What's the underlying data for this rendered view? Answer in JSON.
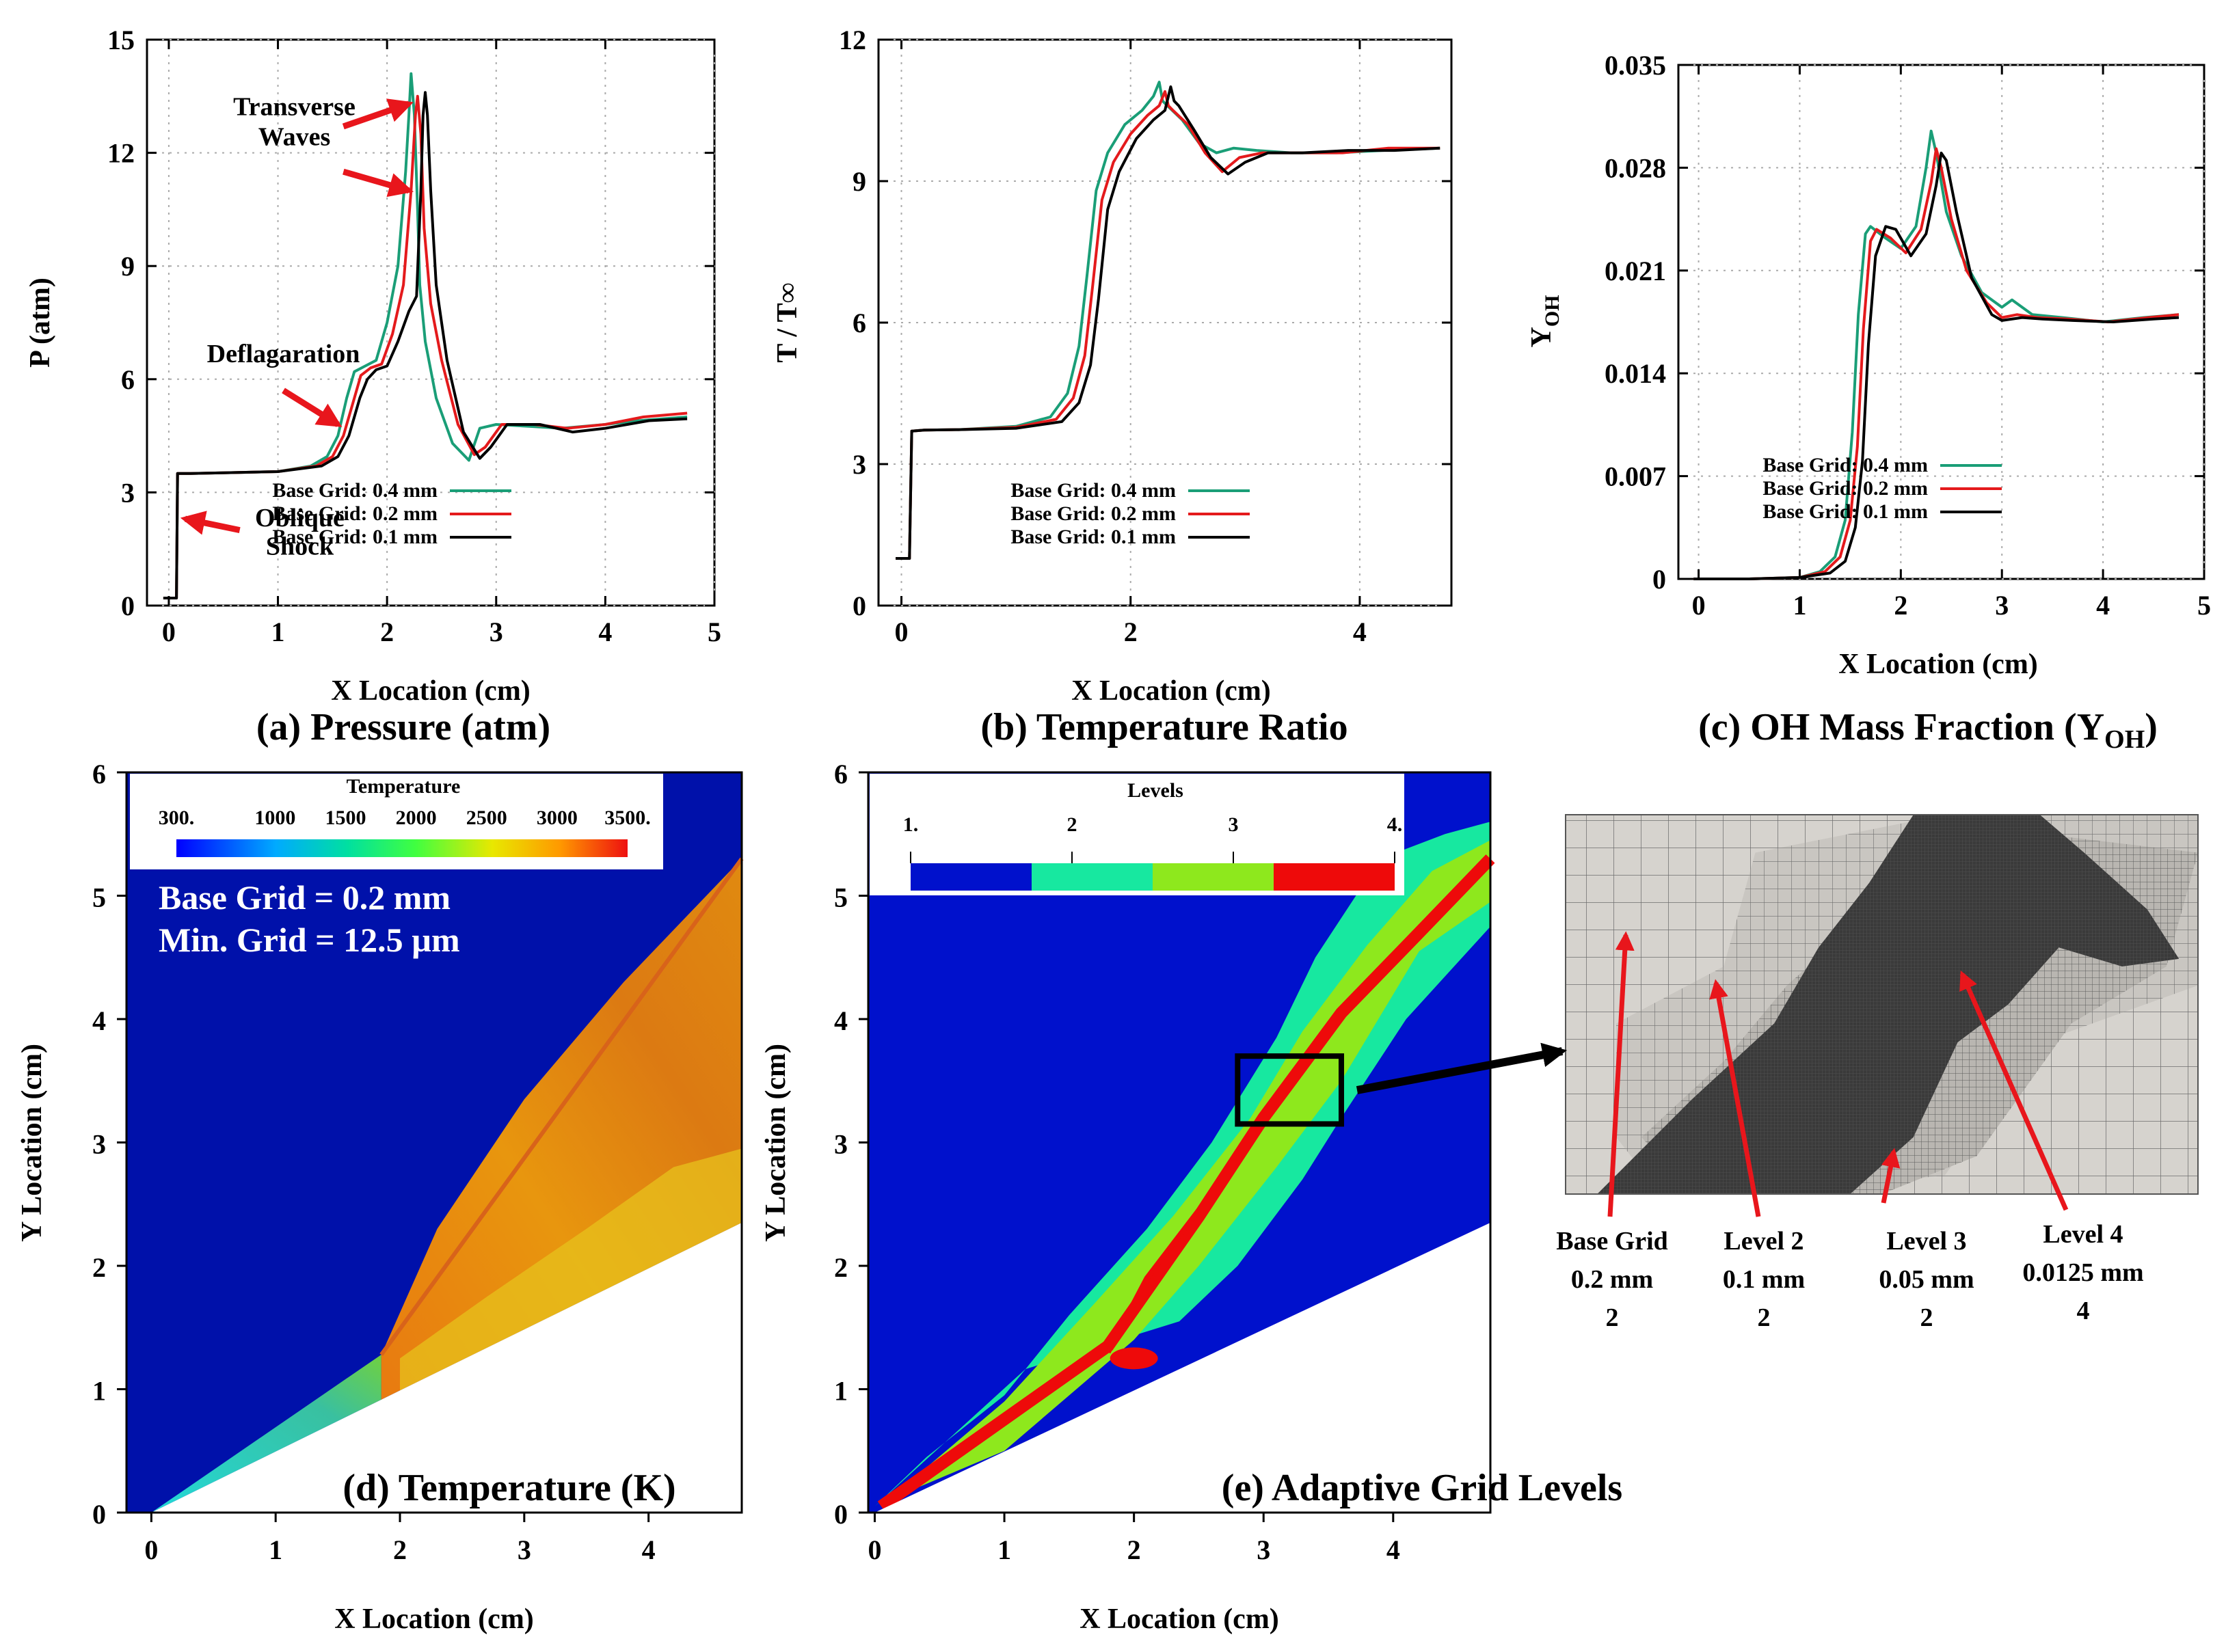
{
  "colors": {
    "series_04": "#1a9e77",
    "series_02": "#e41a1c",
    "series_01": "#000000",
    "arrow": "#e8161c",
    "field_blue": "#0011aa",
    "mesh_light": "#cfcbc5",
    "mesh_dark": "#3b3b3b"
  },
  "chart_data": [
    {
      "id": "a",
      "type": "line",
      "caption": "(a) Pressure (atm)",
      "xlabel": "X Location (cm)",
      "ylabel": "P (atm)",
      "xlim": [
        -0.2,
        5
      ],
      "ylim": [
        0,
        15
      ],
      "xticks": [
        "0",
        "1",
        "2",
        "3",
        "4",
        "5"
      ],
      "yticks": [
        "0",
        "3",
        "6",
        "9",
        "12",
        "15"
      ],
      "grid": true,
      "legend_position": "bottom-right",
      "annotations": [
        {
          "text": "Transverse",
          "x": 1.15,
          "y": 13.0
        },
        {
          "text": "Waves",
          "x": 1.15,
          "y": 12.2
        },
        {
          "text": "Deflagaration",
          "x": 1.05,
          "y": 6.45
        },
        {
          "text": "Oblique",
          "x": 1.2,
          "y": 2.1
        },
        {
          "text": "Shock",
          "x": 1.2,
          "y": 1.35
        }
      ],
      "arrows": [
        {
          "from": [
            1.6,
            12.7
          ],
          "to": [
            2.2,
            13.3
          ]
        },
        {
          "from": [
            1.6,
            11.5
          ],
          "to": [
            2.2,
            11.0
          ]
        },
        {
          "from": [
            1.05,
            5.7
          ],
          "to": [
            1.55,
            4.8
          ]
        },
        {
          "from": [
            0.65,
            2.0
          ],
          "to": [
            0.15,
            2.3
          ]
        }
      ],
      "series": [
        {
          "name": "Base Grid: 0.4 mm",
          "color": "#1a9e77",
          "x": [
            -0.05,
            0.07,
            0.08,
            0.2,
            0.5,
            1.0,
            1.3,
            1.45,
            1.55,
            1.63,
            1.7,
            1.8,
            1.9,
            2.0,
            2.1,
            2.17,
            2.2,
            2.22,
            2.25,
            2.28,
            2.3,
            2.35,
            2.45,
            2.6,
            2.75,
            2.85,
            3.0,
            3.3,
            3.6,
            4.0,
            4.3,
            4.75
          ],
          "y": [
            0.2,
            0.2,
            3.5,
            3.5,
            3.52,
            3.55,
            3.7,
            3.95,
            4.5,
            5.5,
            6.2,
            6.35,
            6.5,
            7.5,
            9.0,
            11.5,
            13.0,
            14.1,
            13.0,
            10.5,
            8.5,
            7.0,
            5.5,
            4.3,
            3.85,
            4.7,
            4.8,
            4.75,
            4.7,
            4.8,
            4.9,
            5.0
          ]
        },
        {
          "name": "Base Grid: 0.2 mm",
          "color": "#e41a1c",
          "x": [
            -0.05,
            0.07,
            0.08,
            0.2,
            0.5,
            1.0,
            1.35,
            1.5,
            1.6,
            1.7,
            1.76,
            1.85,
            1.95,
            2.05,
            2.15,
            2.22,
            2.26,
            2.28,
            2.31,
            2.34,
            2.4,
            2.5,
            2.65,
            2.8,
            2.9,
            3.05,
            3.35,
            3.65,
            4.0,
            4.35,
            4.75
          ],
          "y": [
            0.2,
            0.2,
            3.5,
            3.5,
            3.52,
            3.55,
            3.7,
            3.95,
            4.5,
            5.5,
            6.1,
            6.3,
            6.4,
            7.2,
            8.5,
            11.0,
            13.0,
            13.5,
            12.5,
            10.0,
            8.0,
            6.5,
            4.8,
            4.0,
            4.2,
            4.8,
            4.8,
            4.7,
            4.8,
            5.0,
            5.1
          ]
        },
        {
          "name": "Base Grid: 0.1 mm",
          "color": "#000000",
          "x": [
            -0.05,
            0.07,
            0.08,
            0.2,
            0.5,
            1.0,
            1.4,
            1.55,
            1.65,
            1.75,
            1.82,
            1.9,
            2.0,
            2.1,
            2.2,
            2.27,
            2.31,
            2.33,
            2.35,
            2.37,
            2.4,
            2.45,
            2.55,
            2.7,
            2.85,
            2.95,
            3.1,
            3.4,
            3.7,
            4.0,
            4.4,
            4.75
          ],
          "y": [
            0.2,
            0.2,
            3.5,
            3.5,
            3.52,
            3.55,
            3.7,
            3.95,
            4.5,
            5.5,
            6.0,
            6.25,
            6.35,
            7.0,
            7.8,
            8.2,
            11.0,
            13.0,
            13.6,
            13.0,
            11.0,
            8.5,
            6.5,
            4.6,
            3.9,
            4.2,
            4.8,
            4.8,
            4.6,
            4.7,
            4.9,
            4.95
          ]
        }
      ]
    },
    {
      "id": "b",
      "type": "line",
      "caption": "(b) Temperature Ratio",
      "xlabel": "X Location (cm)",
      "ylabel": "T / T∞",
      "xlim": [
        -0.2,
        4.8
      ],
      "ylim": [
        0,
        12
      ],
      "xticks": [
        "0",
        "2",
        "4"
      ],
      "yticks": [
        "0",
        "3",
        "6",
        "9",
        "12"
      ],
      "grid": true,
      "legend_position": "bottom-right",
      "series": [
        {
          "name": "Base Grid: 0.4 mm",
          "color": "#1a9e77",
          "x": [
            -0.05,
            0.07,
            0.09,
            0.2,
            0.5,
            1.0,
            1.3,
            1.45,
            1.55,
            1.62,
            1.7,
            1.8,
            1.95,
            2.1,
            2.2,
            2.25,
            2.28,
            2.32,
            2.45,
            2.6,
            2.75,
            2.9,
            3.1,
            3.4,
            3.8,
            4.2,
            4.7
          ],
          "y": [
            1.0,
            1.0,
            3.7,
            3.72,
            3.73,
            3.8,
            4.0,
            4.5,
            5.5,
            7.0,
            8.8,
            9.6,
            10.2,
            10.5,
            10.8,
            11.1,
            10.7,
            10.6,
            10.3,
            9.8,
            9.6,
            9.7,
            9.65,
            9.6,
            9.6,
            9.65,
            9.7
          ]
        },
        {
          "name": "Base Grid: 0.2 mm",
          "color": "#e41a1c",
          "x": [
            -0.05,
            0.07,
            0.09,
            0.2,
            0.5,
            1.0,
            1.35,
            1.5,
            1.6,
            1.67,
            1.75,
            1.85,
            2.0,
            2.15,
            2.25,
            2.3,
            2.33,
            2.37,
            2.5,
            2.65,
            2.8,
            2.95,
            3.15,
            3.45,
            3.85,
            4.25,
            4.7
          ],
          "y": [
            1.0,
            1.0,
            3.7,
            3.72,
            3.73,
            3.78,
            3.95,
            4.4,
            5.3,
            6.8,
            8.6,
            9.4,
            10.0,
            10.4,
            10.6,
            10.9,
            10.6,
            10.5,
            10.2,
            9.6,
            9.2,
            9.5,
            9.6,
            9.6,
            9.6,
            9.7,
            9.7
          ]
        },
        {
          "name": "Base Grid: 0.1 mm",
          "color": "#000000",
          "x": [
            -0.05,
            0.07,
            0.09,
            0.2,
            0.5,
            1.0,
            1.4,
            1.55,
            1.65,
            1.72,
            1.8,
            1.9,
            2.05,
            2.2,
            2.3,
            2.35,
            2.38,
            2.42,
            2.55,
            2.7,
            2.85,
            3.0,
            3.2,
            3.5,
            3.9,
            4.3,
            4.7
          ],
          "y": [
            1.0,
            1.0,
            3.7,
            3.72,
            3.73,
            3.76,
            3.9,
            4.3,
            5.1,
            6.5,
            8.4,
            9.2,
            9.9,
            10.3,
            10.5,
            11.0,
            10.7,
            10.6,
            10.1,
            9.5,
            9.15,
            9.4,
            9.6,
            9.6,
            9.65,
            9.65,
            9.7
          ]
        }
      ]
    },
    {
      "id": "c",
      "type": "line",
      "caption": "(c) OH Mass Fraction (Y",
      "caption_sub": "OH",
      "caption_end": ")",
      "xlabel": "X Location (cm)",
      "ylabel": "Y",
      "ylabel_sub": "OH",
      "xlim": [
        -0.2,
        5
      ],
      "ylim": [
        0,
        0.035
      ],
      "xticks": [
        "0",
        "1",
        "2",
        "3",
        "4",
        "5"
      ],
      "yticks": [
        "0",
        "0.007",
        "0.014",
        "0.021",
        "0.028",
        "0.035"
      ],
      "grid": true,
      "legend_position": "bottom-right",
      "series": [
        {
          "name": "Base Grid: 0.4 mm",
          "color": "#1a9e77",
          "x": [
            -0.05,
            0.5,
            1.0,
            1.2,
            1.35,
            1.45,
            1.52,
            1.58,
            1.65,
            1.7,
            1.85,
            2.0,
            2.15,
            2.25,
            2.3,
            2.35,
            2.45,
            2.6,
            2.8,
            3.0,
            3.1,
            3.3,
            3.6,
            4.0,
            4.4,
            4.75
          ],
          "y": [
            0.0,
            0.0,
            0.0001,
            0.0005,
            0.0015,
            0.004,
            0.01,
            0.018,
            0.0235,
            0.024,
            0.0232,
            0.0225,
            0.024,
            0.028,
            0.0305,
            0.029,
            0.025,
            0.022,
            0.0195,
            0.0185,
            0.019,
            0.018,
            0.0178,
            0.0175,
            0.0178,
            0.018
          ]
        },
        {
          "name": "Base Grid: 0.2 mm",
          "color": "#e41a1c",
          "x": [
            -0.05,
            0.5,
            1.0,
            1.25,
            1.4,
            1.5,
            1.57,
            1.63,
            1.7,
            1.76,
            1.9,
            2.05,
            2.2,
            2.3,
            2.35,
            2.4,
            2.5,
            2.65,
            2.85,
            3.0,
            3.15,
            3.35,
            3.65,
            4.05,
            4.45,
            4.75
          ],
          "y": [
            0.0,
            0.0,
            0.0001,
            0.0005,
            0.0015,
            0.004,
            0.009,
            0.017,
            0.023,
            0.0238,
            0.0232,
            0.0222,
            0.0238,
            0.027,
            0.0293,
            0.028,
            0.0245,
            0.021,
            0.0188,
            0.0178,
            0.018,
            0.0178,
            0.0177,
            0.0175,
            0.0178,
            0.018
          ]
        },
        {
          "name": "Base Grid: 0.1 mm",
          "color": "#000000",
          "x": [
            -0.05,
            0.5,
            1.0,
            1.3,
            1.45,
            1.55,
            1.62,
            1.68,
            1.75,
            1.85,
            1.95,
            2.1,
            2.25,
            2.35,
            2.4,
            2.45,
            2.55,
            2.7,
            2.9,
            3.0,
            3.2,
            3.4,
            3.7,
            4.1,
            4.5,
            4.75
          ],
          "y": [
            0.0,
            0.0,
            0.0001,
            0.0004,
            0.0012,
            0.0035,
            0.008,
            0.016,
            0.022,
            0.024,
            0.0238,
            0.022,
            0.0235,
            0.0268,
            0.029,
            0.0285,
            0.025,
            0.0205,
            0.018,
            0.0176,
            0.0178,
            0.0177,
            0.0176,
            0.0175,
            0.0177,
            0.0178
          ]
        }
      ]
    },
    {
      "id": "d",
      "type": "heatmap",
      "caption": "(d) Temperature (K)",
      "xlabel": "X Location (cm)",
      "ylabel": "Y Location (cm)",
      "xlim": [
        -0.2,
        4.75
      ],
      "ylim": [
        0,
        6
      ],
      "xticks": [
        "0",
        "1",
        "2",
        "3",
        "4"
      ],
      "yticks": [
        "0",
        "1",
        "2",
        "3",
        "4",
        "5",
        "6"
      ],
      "colorbar": {
        "title": "Temperature",
        "ticks": [
          "300.",
          "1000",
          "1500",
          "2000",
          "2500",
          "3000",
          "3500."
        ],
        "range": [
          300,
          3500
        ]
      },
      "overlay": [
        "Base Grid = 0.2 mm",
        "Min. Grid = 12.5 µm"
      ],
      "wedge": {
        "from": [
          0,
          0
        ],
        "to": [
          4.75,
          2.35
        ]
      },
      "shock_line": {
        "from": [
          1.85,
          1.28
        ],
        "to": [
          4.75,
          5.3
        ]
      },
      "ambient_temperature_K": 300,
      "post_shock_temperature_K": 1100,
      "burned_temperature_K": 3100
    },
    {
      "id": "e",
      "type": "heatmap",
      "caption": "(e) Adaptive Grid Levels",
      "xlabel": "X Location (cm)",
      "ylabel": "Y Location (cm)",
      "xlim": [
        -0.05,
        4.75
      ],
      "ylim": [
        0,
        6
      ],
      "xticks": [
        "0",
        "1",
        "2",
        "3",
        "4"
      ],
      "yticks": [
        "0",
        "1",
        "2",
        "3",
        "4",
        "5",
        "6"
      ],
      "colorbar": {
        "title": "Levels",
        "ticks": [
          "1.",
          "2",
          "3",
          "4."
        ],
        "colors": [
          "#0011cc",
          "#17e8a0",
          "#8ee81d",
          "#ee0a0a"
        ]
      },
      "zoom_box": {
        "x": [
          2.8,
          3.6
        ],
        "y": [
          3.15,
          3.7
        ]
      }
    }
  ],
  "zoom_panel": {
    "labels": [
      {
        "lines": [
          "Base Grid",
          "0.2 mm",
          "2"
        ]
      },
      {
        "lines": [
          "Level 2",
          "0.1 mm",
          "2"
        ]
      },
      {
        "lines": [
          "Level 3",
          "0.05 mm",
          "2"
        ]
      },
      {
        "lines": [
          "Level 4",
          "0.0125 mm",
          "4"
        ]
      }
    ]
  }
}
